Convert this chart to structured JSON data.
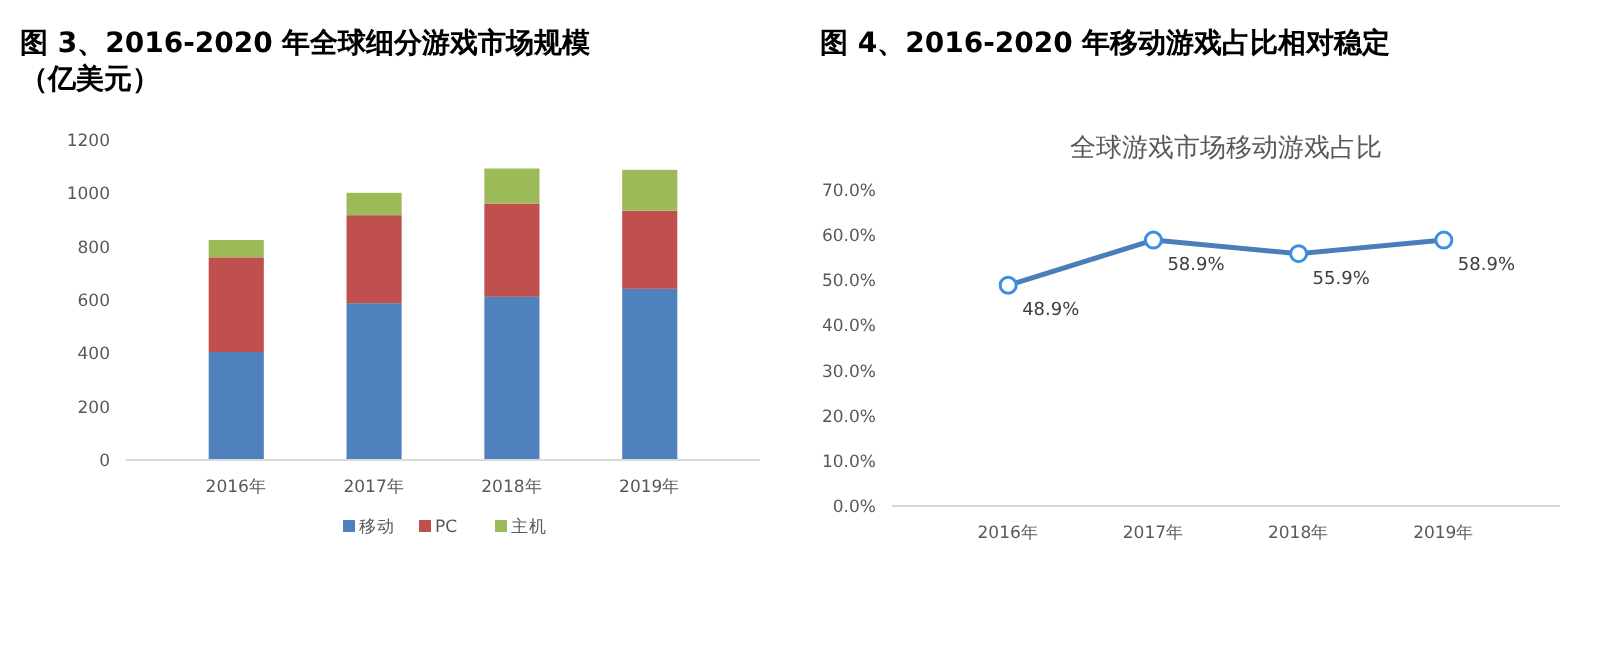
{
  "chart_data": [
    {
      "type": "bar",
      "title": "图 3、2016-2020 年全球细分游戏市场规模（亿美元）",
      "categories": [
        "2016年",
        "2017年",
        "2018年",
        "2019年"
      ],
      "stacked": true,
      "series": [
        {
          "name": "移动",
          "color": "#4f81bd",
          "values": [
            405,
            588,
            612,
            642
          ]
        },
        {
          "name": "PC",
          "color": "#c0504d",
          "values": [
            355,
            330,
            350,
            293
          ]
        },
        {
          "name": "主机",
          "color": "#9bbb59",
          "values": [
            65,
            84,
            131,
            153
          ]
        }
      ],
      "ylim": [
        0,
        1200
      ],
      "yticks": [
        0,
        200,
        400,
        600,
        800,
        1000,
        1200
      ],
      "grid": false,
      "legend": "bottom"
    },
    {
      "type": "line",
      "title": "图 4、2016-2020 年移动游戏占比相对稳定",
      "subtitle": "全球游戏市场移动游戏占比",
      "categories": [
        "2016年",
        "2017年",
        "2018年",
        "2019年"
      ],
      "series": [
        {
          "color": "#4a7ebb",
          "values": [
            48.9,
            58.9,
            55.9,
            58.9
          ],
          "value_labels": [
            "48.9%",
            "58.9%",
            "55.9%",
            "58.9%"
          ]
        }
      ],
      "ylim": [
        0,
        70
      ],
      "yticks": [
        {
          "value": 0,
          "label": "0.0%"
        },
        {
          "value": 10,
          "label": "10.0%"
        },
        {
          "value": 20,
          "label": "20.0%"
        },
        {
          "value": 30,
          "label": "30.0%"
        },
        {
          "value": 40,
          "label": "40.0%"
        },
        {
          "value": 50,
          "label": "50.0%"
        },
        {
          "value": 60,
          "label": "60.0%"
        },
        {
          "value": 70,
          "label": "70.0%"
        }
      ],
      "grid": false,
      "legend": false,
      "marker": "circle",
      "line_style": "solid"
    }
  ]
}
